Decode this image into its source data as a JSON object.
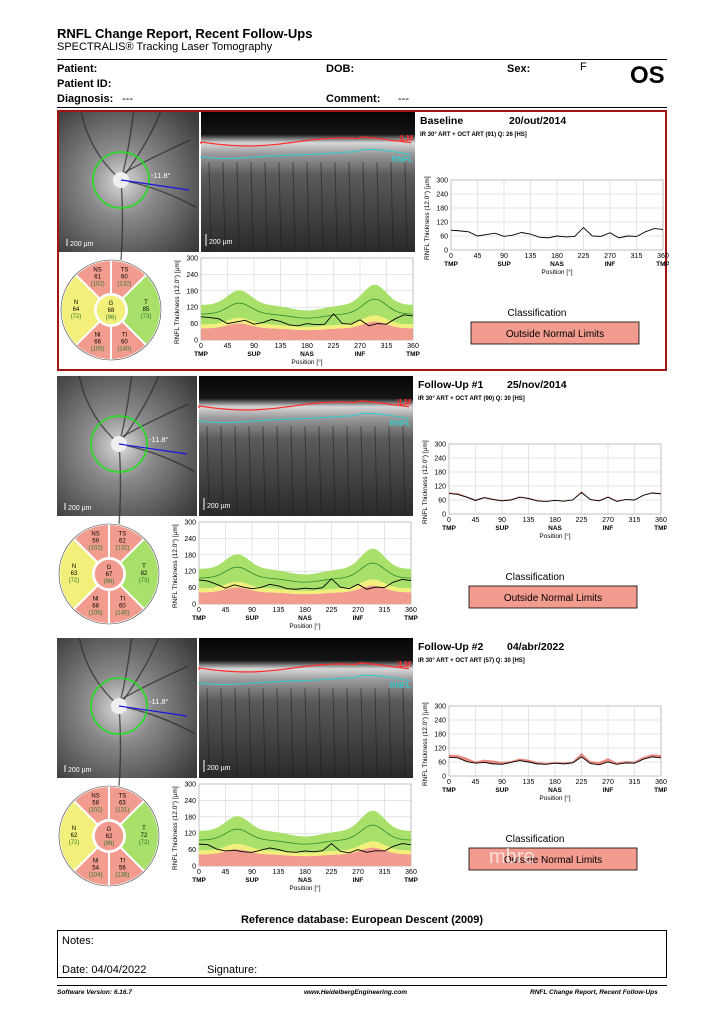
{
  "header": {
    "title": "RNFL Change Report, Recent Follow-Ups",
    "subtitle": "SPECTRALIS® Tracking Laser Tomography",
    "patient_label": "Patient:",
    "patient_id_label": "Patient ID:",
    "diagnosis_label": "Diagnosis:",
    "diagnosis_value": "---",
    "dob_label": "DOB:",
    "comment_label": "Comment:",
    "comment_value": "---",
    "sex_label": "Sex:",
    "sex_value": "F",
    "eye": "OS"
  },
  "exams": [
    {
      "label": "Baseline",
      "date": "20/out/2014",
      "scan_info": "IR 30° ART + OCT ART (91) Q: 26 [HS]",
      "angle": "-11.8°",
      "scale": "200 µm",
      "classification_label": "Classification",
      "classification": "Outside Normal Limits",
      "sectors": {
        "NS": {
          "name": "NS",
          "value": "61",
          "ref": "(102)"
        },
        "TS": {
          "name": "TS",
          "value": "60",
          "ref": "(132)"
        },
        "N": {
          "name": "N",
          "value": "64",
          "ref": "(72)"
        },
        "G": {
          "name": "G",
          "value": "68",
          "ref": "(96)"
        },
        "T": {
          "name": "T",
          "value": "85",
          "ref": "(73)"
        },
        "NI": {
          "name": "NI",
          "value": "66",
          "ref": "(105)"
        },
        "TI": {
          "name": "TI",
          "value": "60",
          "ref": "(140)"
        }
      },
      "chart_data": {
        "type": "line",
        "ylabel": "RNFL Thickness (12.0°) [µm]",
        "xlabel": "Position [°]",
        "xlim": [
          0,
          360
        ],
        "ylim": [
          0,
          300
        ],
        "xticks": [
          0,
          45,
          90,
          135,
          180,
          225,
          270,
          315,
          360
        ],
        "yticks": [
          0,
          60,
          120,
          180,
          240,
          300
        ],
        "region_labels": [
          "TMP",
          "SUP",
          "NAS",
          "INF",
          "TMP"
        ],
        "x": [
          0,
          15,
          30,
          45,
          60,
          75,
          90,
          105,
          120,
          135,
          150,
          165,
          180,
          195,
          210,
          225,
          240,
          255,
          270,
          285,
          300,
          315,
          330,
          345,
          360
        ],
        "thickness": [
          85,
          82,
          78,
          60,
          66,
          72,
          58,
          64,
          75,
          68,
          55,
          52,
          60,
          56,
          58,
          96,
          60,
          58,
          74,
          52,
          60,
          58,
          78,
          92,
          88
        ],
        "change": [
          90,
          88,
          80,
          62,
          70,
          75,
          60,
          66,
          78,
          72,
          60,
          54,
          62,
          58,
          60,
          100,
          62,
          60,
          75,
          56,
          62,
          62,
          80,
          95,
          92
        ]
      }
    },
    {
      "label": "Follow-Up #1",
      "date": "25/nov/2014",
      "scan_info": "IR 30° ART + OCT ART (90) Q: 30 [HS]",
      "angle": "-11.8°",
      "scale": "200 µm",
      "classification_label": "Classification",
      "classification": "Outside Normal Limits",
      "sectors": {
        "NS": {
          "name": "NS",
          "value": "59",
          "ref": "(102)"
        },
        "TS": {
          "name": "TS",
          "value": "62",
          "ref": "(132)"
        },
        "N": {
          "name": "N",
          "value": "63",
          "ref": "(72)"
        },
        "G": {
          "name": "G",
          "value": "67",
          "ref": "(96)"
        },
        "T": {
          "name": "T",
          "value": "82",
          "ref": "(73)"
        },
        "NI": {
          "name": "NI",
          "value": "68",
          "ref": "(105)"
        },
        "TI": {
          "name": "TI",
          "value": "60",
          "ref": "(140)"
        }
      },
      "chart_data": {
        "type": "line",
        "ylabel": "RNFL Thickness (12.0°) [µm]",
        "xlabel": "Position [°]",
        "xlim": [
          0,
          360
        ],
        "ylim": [
          0,
          300
        ],
        "xticks": [
          0,
          45,
          90,
          135,
          180,
          225,
          270,
          315,
          360
        ],
        "yticks": [
          0,
          60,
          120,
          180,
          240,
          300
        ],
        "region_labels": [
          "TMP",
          "SUP",
          "NAS",
          "INF",
          "TMP"
        ],
        "x": [
          0,
          15,
          30,
          45,
          60,
          75,
          90,
          105,
          120,
          135,
          150,
          165,
          180,
          195,
          210,
          225,
          240,
          255,
          270,
          285,
          300,
          315,
          330,
          345,
          360
        ],
        "thickness": [
          88,
          84,
          72,
          58,
          70,
          62,
          56,
          60,
          72,
          66,
          56,
          54,
          58,
          55,
          60,
          92,
          62,
          56,
          72,
          54,
          62,
          60,
          80,
          90,
          86
        ],
        "change": [
          92,
          90,
          76,
          62,
          74,
          66,
          60,
          64,
          75,
          70,
          60,
          56,
          60,
          58,
          62,
          98,
          64,
          60,
          76,
          58,
          64,
          62,
          82,
          93,
          90
        ]
      }
    },
    {
      "label": "Follow-Up #2",
      "date": "04/abr/2022",
      "scan_info": "IR 30° ART + OCT ART (57) Q: 30 [HS]",
      "angle": "-11.8°",
      "scale": "200 µm",
      "classification_label": "Classification",
      "classification": "Outside Normal Limits",
      "sectors": {
        "NS": {
          "name": "NS",
          "value": "58",
          "ref": "(102)"
        },
        "TS": {
          "name": "TS",
          "value": "63",
          "ref": "(131)"
        },
        "N": {
          "name": "N",
          "value": "62",
          "ref": "(72)"
        },
        "G": {
          "name": "G",
          "value": "62",
          "ref": "(96)"
        },
        "T": {
          "name": "T",
          "value": "72",
          "ref": "(72)"
        },
        "NI": {
          "name": "NI",
          "value": "54",
          "ref": "(104)"
        },
        "TI": {
          "name": "TI",
          "value": "56",
          "ref": "(138)"
        }
      },
      "chart_data": {
        "type": "line",
        "ylabel": "RNFL Thickness (12.0°) [µm]",
        "xlabel": "Position [°]",
        "xlim": [
          0,
          360
        ],
        "ylim": [
          0,
          300
        ],
        "xticks": [
          0,
          45,
          90,
          135,
          180,
          225,
          270,
          315,
          360
        ],
        "yticks": [
          0,
          60,
          120,
          180,
          240,
          300
        ],
        "region_labels": [
          "TMP",
          "SUP",
          "NAS",
          "INF",
          "TMP"
        ],
        "x": [
          0,
          15,
          30,
          45,
          60,
          75,
          90,
          105,
          120,
          135,
          150,
          165,
          180,
          195,
          210,
          225,
          240,
          255,
          270,
          285,
          300,
          315,
          330,
          345,
          360
        ],
        "thickness": [
          80,
          78,
          62,
          55,
          58,
          52,
          50,
          58,
          66,
          60,
          52,
          50,
          55,
          52,
          56,
          82,
          54,
          48,
          60,
          50,
          56,
          55,
          72,
          82,
          78
        ],
        "change": [
          92,
          90,
          78,
          62,
          70,
          66,
          60,
          64,
          75,
          70,
          60,
          56,
          60,
          58,
          62,
          98,
          64,
          60,
          76,
          58,
          64,
          62,
          82,
          93,
          90
        ]
      }
    }
  ],
  "footer": {
    "reference_db": "Reference database: European Descent (2009)",
    "notes_label": "Notes:",
    "date_label": "Date: 04/04/2022",
    "signature_label": "Signature:",
    "software_version": "Software Version: 6.16.7",
    "website": "www.HeidelbergEngineering.com",
    "report_name": "RNFL Change Report, Recent Follow-Ups"
  },
  "colors": {
    "normal": "#a8e06a",
    "borderline": "#f2f07a",
    "outside": "#f29b8f",
    "frame": "#a31515",
    "trace": "#000000",
    "diff_fill": "#e0574a"
  },
  "labels": {
    "ilm": "ILM",
    "rnfl": "RNFL"
  },
  "watermark": "mbre"
}
